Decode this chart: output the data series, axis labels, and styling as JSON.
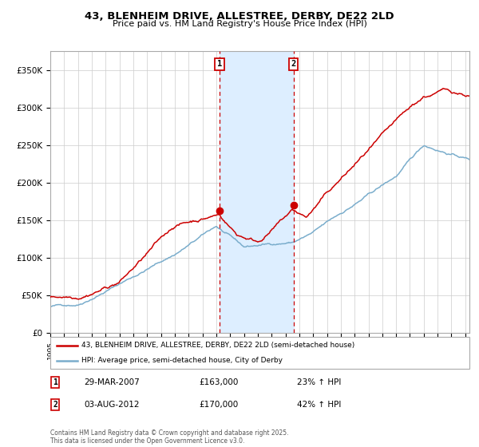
{
  "title_line1": "43, BLENHEIM DRIVE, ALLESTREE, DERBY, DE22 2LD",
  "title_line2": "Price paid vs. HM Land Registry's House Price Index (HPI)",
  "ylabel_ticks": [
    "£0",
    "£50K",
    "£100K",
    "£150K",
    "£200K",
    "£250K",
    "£300K",
    "£350K"
  ],
  "ytick_values": [
    0,
    50000,
    100000,
    150000,
    200000,
    250000,
    300000,
    350000
  ],
  "ylim": [
    0,
    375000
  ],
  "legend_line1": "43, BLENHEIM DRIVE, ALLESTREE, DERBY, DE22 2LD (semi-detached house)",
  "legend_line2": "HPI: Average price, semi-detached house, City of Derby",
  "marker1_date": "29-MAR-2007",
  "marker1_price": 163000,
  "marker1_label": "£163,000",
  "marker1_hpi": "23% ↑ HPI",
  "marker2_date": "03-AUG-2012",
  "marker2_price": 170000,
  "marker2_label": "£170,000",
  "marker2_hpi": "42% ↑ HPI",
  "vline1_x": 2007.23,
  "vline2_x": 2012.58,
  "shade_xmin": 2007.23,
  "shade_xmax": 2012.58,
  "copyright_text": "Contains HM Land Registry data © Crown copyright and database right 2025.\nThis data is licensed under the Open Government Licence v3.0.",
  "red_color": "#cc0000",
  "blue_color": "#7aadcc",
  "shade_color": "#ddeeff",
  "xlim_min": 1995,
  "xlim_max": 2025.3
}
